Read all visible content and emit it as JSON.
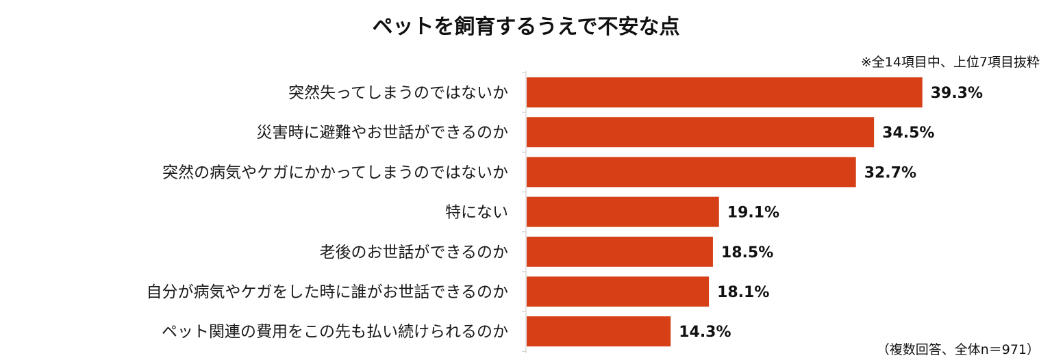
{
  "chart_data": {
    "type": "bar",
    "orientation": "horizontal",
    "title": "ペットを飼育するうえで不安な点",
    "note": "※全14項目中、上位7項目抜粋",
    "footnote": "（複数回答、全体n＝971）",
    "categories": [
      "突然失ってしまうのではないか",
      "災害時に避難やお世話ができるのか",
      "突然の病気やケガにかかってしまうのではないか",
      "特にない",
      "老後のお世話ができるのか",
      "自分が病気やケガをした時に誰がお世話できるのか",
      "ペット関連の費用をこの先も払い続けられるのか"
    ],
    "values": [
      39.3,
      34.5,
      32.7,
      19.1,
      18.5,
      18.1,
      14.3
    ],
    "value_labels": [
      "39.3%",
      "34.5%",
      "32.7%",
      "19.1%",
      "18.5%",
      "18.1%",
      "14.3%"
    ],
    "xlim": [
      0,
      40
    ],
    "grid": false,
    "bar_color": "#D74016"
  }
}
